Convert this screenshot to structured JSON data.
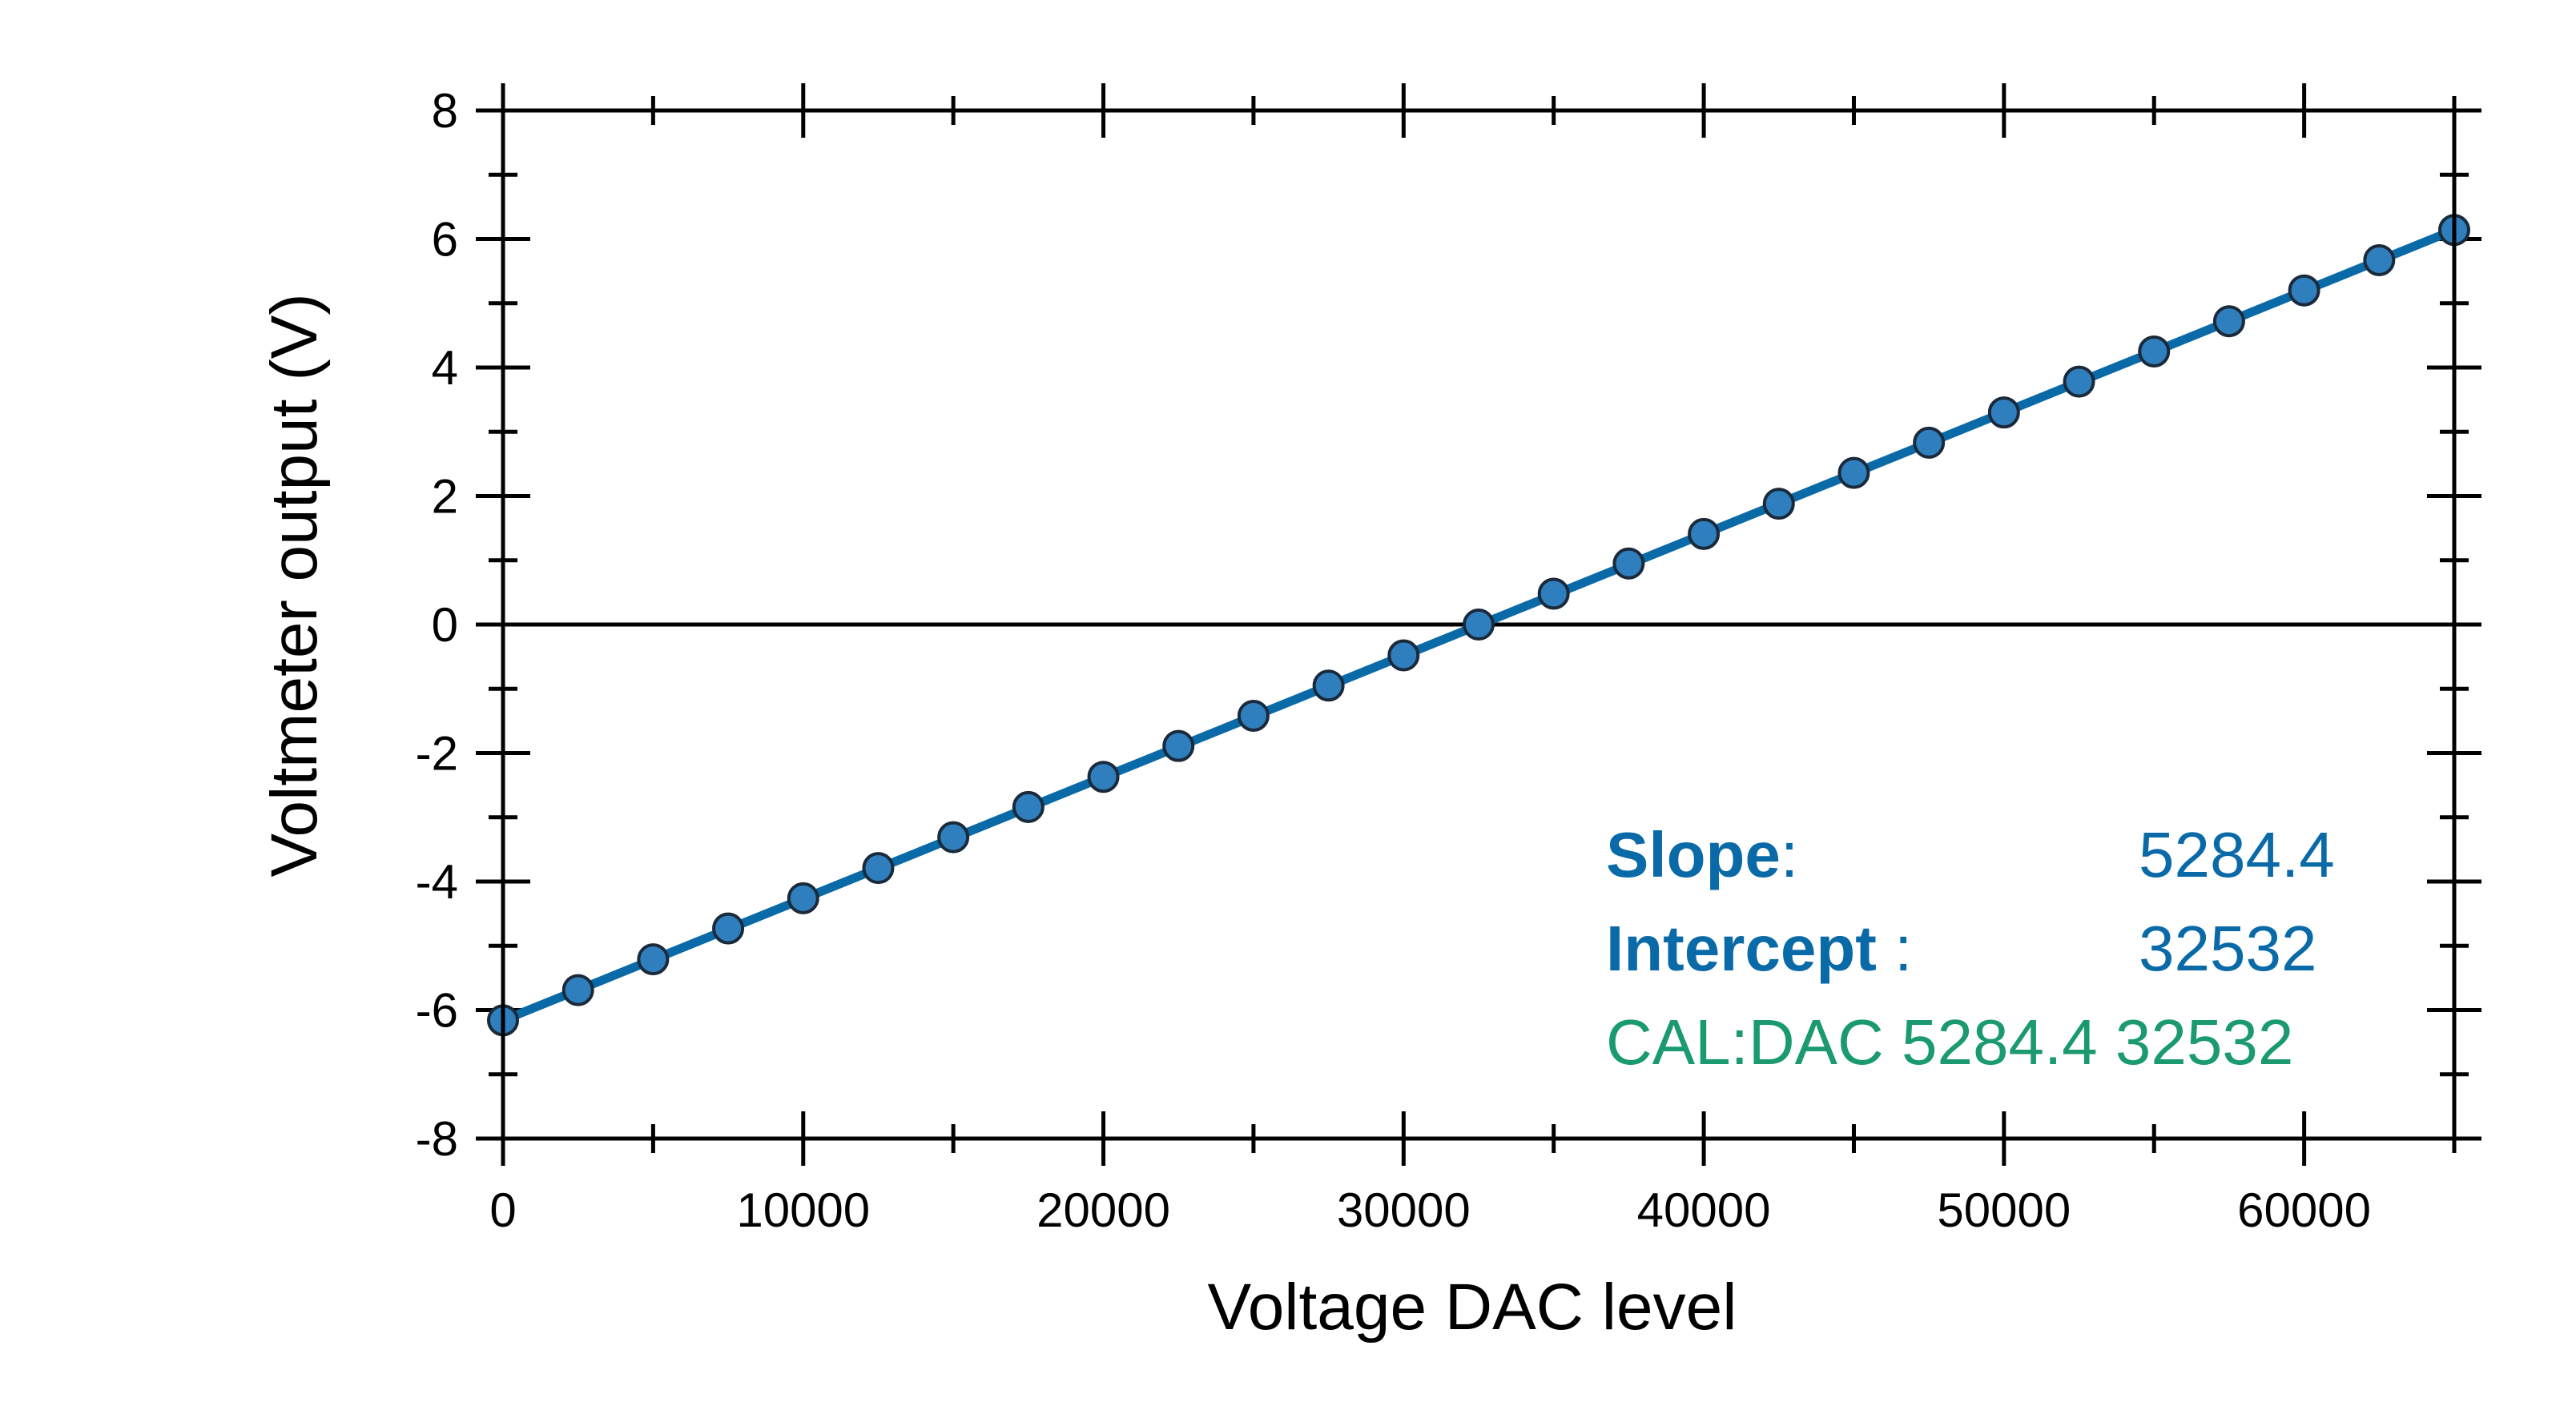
{
  "chart_data": {
    "type": "scatter",
    "xlabel": "Voltage DAC level",
    "ylabel": "Voltmeter output (V)",
    "xlim": [
      0,
      65000
    ],
    "ylim": [
      -8,
      8
    ],
    "xticks": [
      "0",
      "10000",
      "20000",
      "30000",
      "40000",
      "50000",
      "60000"
    ],
    "xtick_values": [
      0,
      10000,
      20000,
      30000,
      40000,
      50000,
      60000
    ],
    "yticks": [
      "-8",
      "-6",
      "-4",
      "-2",
      "0",
      "2",
      "4",
      "6",
      "8"
    ],
    "ytick_values": [
      -8,
      -6,
      -4,
      -2,
      0,
      2,
      4,
      6,
      8
    ],
    "grid": false,
    "zero_line": true,
    "series": [
      {
        "color": "#2f7fbf",
        "x": [
          0,
          2500,
          5000,
          7500,
          10000,
          12500,
          15000,
          17500,
          20000,
          22500,
          25000,
          27500,
          30000,
          32500,
          35000,
          37500,
          40000,
          42500,
          45000,
          47500,
          50000,
          52500,
          55000,
          57500,
          60000,
          62500,
          65000
        ],
        "y": [
          -6.16,
          -5.69,
          -5.21,
          -4.73,
          -4.26,
          -3.79,
          -3.31,
          -2.84,
          -2.37,
          -1.89,
          -1.42,
          -0.95,
          -0.48,
          0.0,
          0.48,
          0.95,
          1.41,
          1.88,
          2.36,
          2.83,
          3.3,
          3.78,
          4.25,
          4.72,
          5.2,
          5.67,
          6.14
        ]
      }
    ],
    "fit_line": {
      "color": "#0a6aa8",
      "x": [
        0,
        65000
      ],
      "y": [
        -6.16,
        6.14
      ]
    },
    "annotations": {
      "slope_label": "Slope",
      "slope_colon": ":",
      "slope_value": "5284.4",
      "intercept_label": "Intercept",
      "intercept_colon": " :",
      "intercept_value": "32532",
      "cal_command": "CAL:DAC 5284.4 32532",
      "label_color": "#0a6aa8",
      "cal_color": "#1a9a6e"
    }
  }
}
